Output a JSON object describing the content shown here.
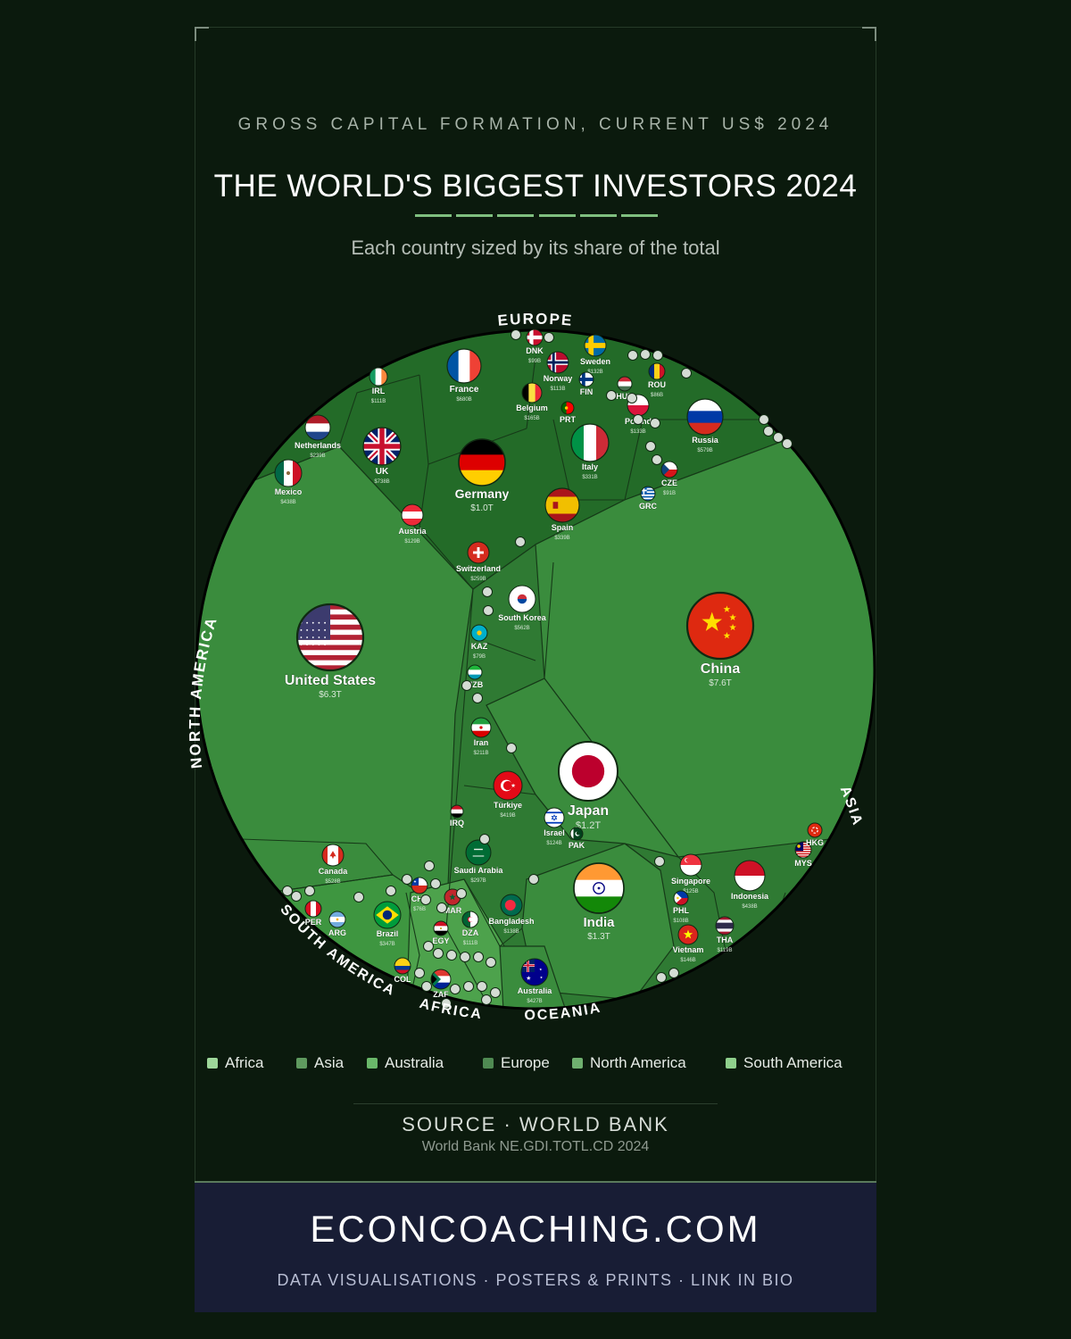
{
  "header": {
    "eyebrow": "GROSS CAPITAL FORMATION, CURRENT US$ 2024",
    "title": "THE WORLD'S BIGGEST INVESTORS 2024",
    "subtitle": "Each country sized by its share of the total"
  },
  "chart_data": {
    "type": "voronoi-treemap",
    "title": "THE WORLD'S BIGGEST INVESTORS 2024",
    "subtitle": "Each country sized by its share of the total",
    "region_labels": [
      "EUROPE",
      "NORTH AMERICA",
      "ASIA",
      "SOUTH AMERICA",
      "AFRICA",
      "OCEANIA"
    ],
    "series": [
      {
        "name": "Asia",
        "countries": [
          {
            "name": "China",
            "code": "CHN",
            "value_label": "$7.6T",
            "value_usd_bn": 7600
          },
          {
            "name": "Japan",
            "code": "JPN",
            "value_label": "$1.2T",
            "value_usd_bn": 1200
          },
          {
            "name": "India",
            "code": "IND",
            "value_label": "$1.3T",
            "value_usd_bn": 1300
          },
          {
            "name": "South Korea",
            "code": "KOR",
            "value_label": "$562B",
            "value_usd_bn": 562
          },
          {
            "name": "Indonesia",
            "code": "IDN",
            "value_label": "$438B",
            "value_usd_bn": 438
          },
          {
            "name": "Türkiye",
            "code": "TUR",
            "value_label": "$419B",
            "value_usd_bn": 419
          },
          {
            "name": "Saudi Arabia",
            "code": "SAU",
            "value_label": "$297B",
            "value_usd_bn": 297
          },
          {
            "name": "Iran",
            "code": "IRN",
            "value_label": "$211B",
            "value_usd_bn": 211
          },
          {
            "name": "Bangladesh",
            "code": "BGD",
            "value_label": "$138B",
            "value_usd_bn": 138
          },
          {
            "name": "Singapore",
            "code": "SGP",
            "value_label": "$125B",
            "value_usd_bn": 125
          },
          {
            "name": "Vietnam",
            "code": "VNM",
            "value_label": "$146B",
            "value_usd_bn": 146
          },
          {
            "name": "Israel",
            "code": "ISR",
            "value_label": "$124B",
            "value_usd_bn": 124
          },
          {
            "name": "PHL",
            "code": "PHL",
            "value_label": "$108B",
            "value_usd_bn": 108
          },
          {
            "name": "THA",
            "code": "THA",
            "value_label": "$119B",
            "value_usd_bn": 119
          },
          {
            "name": "KAZ",
            "code": "KAZ",
            "value_label": "$79B",
            "value_usd_bn": 79
          },
          {
            "name": "MYS",
            "code": "MYS",
            "value_label": "",
            "value_usd_bn": null
          },
          {
            "name": "HKG",
            "code": "HKG",
            "value_label": "",
            "value_usd_bn": null
          },
          {
            "name": "PAK",
            "code": "PAK",
            "value_label": "",
            "value_usd_bn": null
          },
          {
            "name": "IRQ",
            "code": "IRQ",
            "value_label": "",
            "value_usd_bn": null
          },
          {
            "name": "UZB",
            "code": "UZB",
            "value_label": "",
            "value_usd_bn": null
          }
        ]
      },
      {
        "name": "North America",
        "countries": [
          {
            "name": "United States",
            "code": "USA",
            "value_label": "$6.3T",
            "value_usd_bn": 6300
          },
          {
            "name": "Canada",
            "code": "CAN",
            "value_label": "$528B",
            "value_usd_bn": 528
          },
          {
            "name": "Mexico",
            "code": "MEX",
            "value_label": "$438B",
            "value_usd_bn": 438
          }
        ]
      },
      {
        "name": "Europe",
        "countries": [
          {
            "name": "Germany",
            "code": "DEU",
            "value_label": "$1.0T",
            "value_usd_bn": 1000
          },
          {
            "name": "UK",
            "code": "GBR",
            "value_label": "$738B",
            "value_usd_bn": 738
          },
          {
            "name": "France",
            "code": "FRA",
            "value_label": "$680B",
            "value_usd_bn": 680
          },
          {
            "name": "Russia",
            "code": "RUS",
            "value_label": "$579B",
            "value_usd_bn": 579
          },
          {
            "name": "Spain",
            "code": "ESP",
            "value_label": "$339B",
            "value_usd_bn": 339
          },
          {
            "name": "Italy",
            "code": "ITA",
            "value_label": "$331B",
            "value_usd_bn": 331
          },
          {
            "name": "Switzerland",
            "code": "CHE",
            "value_label": "$259B",
            "value_usd_bn": 259
          },
          {
            "name": "Netherlands",
            "code": "NLD",
            "value_label": "$239B",
            "value_usd_bn": 239
          },
          {
            "name": "Belgium",
            "code": "BEL",
            "value_label": "$165B",
            "value_usd_bn": 165
          },
          {
            "name": "Sweden",
            "code": "SWE",
            "value_label": "$132B",
            "value_usd_bn": 132
          },
          {
            "name": "Poland",
            "code": "POL",
            "value_label": "$133B",
            "value_usd_bn": 133
          },
          {
            "name": "Austria",
            "code": "AUT",
            "value_label": "$129B",
            "value_usd_bn": 129
          },
          {
            "name": "Norway",
            "code": "NOR",
            "value_label": "$113B",
            "value_usd_bn": 113
          },
          {
            "name": "IRL",
            "code": "IRL",
            "value_label": "$111B",
            "value_usd_bn": 111
          },
          {
            "name": "DNK",
            "code": "DNK",
            "value_label": "$99B",
            "value_usd_bn": 99
          },
          {
            "name": "ROU",
            "code": "ROU",
            "value_label": "$86B",
            "value_usd_bn": 86
          },
          {
            "name": "CZE",
            "code": "CZE",
            "value_label": "$91B",
            "value_usd_bn": 91
          },
          {
            "name": "FIN",
            "code": "FIN",
            "value_label": "",
            "value_usd_bn": null
          },
          {
            "name": "HUN",
            "code": "HUN",
            "value_label": "",
            "value_usd_bn": null
          },
          {
            "name": "PRT",
            "code": "PRT",
            "value_label": "",
            "value_usd_bn": null
          },
          {
            "name": "GRC",
            "code": "GRC",
            "value_label": "",
            "value_usd_bn": null
          }
        ]
      },
      {
        "name": "South America",
        "countries": [
          {
            "name": "Brazil",
            "code": "BRA",
            "value_label": "$347B",
            "value_usd_bn": 347
          },
          {
            "name": "CHL",
            "code": "CHL",
            "value_label": "$76B",
            "value_usd_bn": 76
          },
          {
            "name": "ARG",
            "code": "ARG",
            "value_label": "",
            "value_usd_bn": null
          },
          {
            "name": "PER",
            "code": "PER",
            "value_label": "",
            "value_usd_bn": null
          },
          {
            "name": "COL",
            "code": "COL",
            "value_label": "",
            "value_usd_bn": null
          }
        ]
      },
      {
        "name": "Africa",
        "countries": [
          {
            "name": "DZA",
            "code": "DZA",
            "value_label": "$111B",
            "value_usd_bn": 111
          },
          {
            "name": "EGY",
            "code": "EGY",
            "value_label": "",
            "value_usd_bn": null
          },
          {
            "name": "MAR",
            "code": "MAR",
            "value_label": "",
            "value_usd_bn": null
          },
          {
            "name": "ZAF",
            "code": "ZAF",
            "value_label": "",
            "value_usd_bn": null
          }
        ]
      },
      {
        "name": "Australia",
        "countries": [
          {
            "name": "Australia",
            "code": "AUS",
            "value_label": "$427B",
            "value_usd_bn": 427
          }
        ]
      }
    ],
    "legend": [
      "Africa",
      "Asia",
      "Australia",
      "Europe",
      "North America",
      "South America"
    ],
    "legend_colors": {
      "Africa": "#9ed79a",
      "Asia": "#5f9a5f",
      "Australia": "#6ab86a",
      "Europe": "#4f8a52",
      "North America": "#6fb06f",
      "South America": "#8fd08c"
    }
  },
  "colors": {
    "background": "#0b1a0d",
    "chart_green": "#3a8c3d",
    "europe_green": "#236b28",
    "asia_green": "#2f7a33",
    "footer_band": "#181d35",
    "title_rule": "#7fbf7f"
  },
  "source": {
    "title": "SOURCE · WORLD BANK",
    "detail": "World Bank NE.GDI.TOTL.CD 2024"
  },
  "footer": {
    "brand": "ECONCOACHING.COM",
    "tagline": "DATA VISUALISATIONS · POSTERS & PRINTS · LINK IN BIO"
  }
}
